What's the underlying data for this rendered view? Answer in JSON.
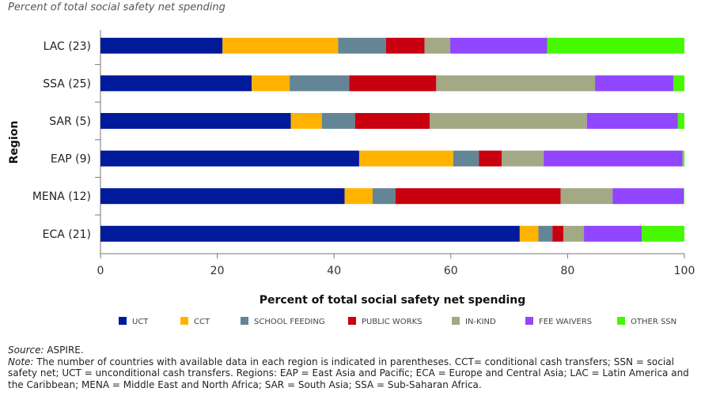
{
  "subtitle": "Percent of total social safety net spending",
  "chart_data": {
    "type": "bar",
    "orientation": "horizontal",
    "stacked": true,
    "categories": [
      "LAC (23)",
      "SSA (25)",
      "SAR (5)",
      "EAP (9)",
      "MENA (12)",
      "ECA (21)"
    ],
    "series": [
      {
        "name": "UCT",
        "color": "#001a99",
        "values": [
          20.9,
          25.9,
          32.6,
          44.3,
          41.8,
          71.8
        ]
      },
      {
        "name": "CCT",
        "color": "#ffb300",
        "values": [
          19.8,
          6.5,
          5.3,
          16.1,
          4.8,
          3.2
        ]
      },
      {
        "name": "SCHOOL FEEDING",
        "color": "#648595",
        "values": [
          8.2,
          10.2,
          5.7,
          4.4,
          3.9,
          2.4
        ]
      },
      {
        "name": "PUBLIC WORKS",
        "color": "#c8000f",
        "values": [
          6.6,
          14.9,
          12.8,
          3.9,
          28.3,
          1.9
        ]
      },
      {
        "name": "IN-KIND",
        "color": "#a3a885",
        "values": [
          4.4,
          27.2,
          26.9,
          7.2,
          8.9,
          3.5
        ]
      },
      {
        "name": "FEE WAIVERS",
        "color": "#9146ff",
        "values": [
          16.6,
          13.4,
          15.6,
          23.8,
          12.2,
          9.9
        ]
      },
      {
        "name": "OTHER SSN",
        "color": "#46f800",
        "values": [
          23.5,
          1.9,
          1.1,
          0.3,
          0.1,
          7.3
        ]
      }
    ],
    "xlabel": "Percent of total social safety net spending",
    "ylabel": "Region",
    "xlim": [
      0,
      100
    ],
    "xticks": [
      "0",
      "20",
      "40",
      "60",
      "80",
      "100"
    ],
    "grid": false,
    "legend": "bottom"
  },
  "notes": {
    "source_label": "Source:",
    "source_text": " ASPIRE.",
    "note_label": "Note:",
    "note_text": " The number of countries with available data in each region is indicated in parentheses. CCT= conditional cash transfers; SSN = social safety net; UCT = unconditional cash transfers. Regions: EAP = East Asia and Pacific; ECA = Europe and Central Asia; LAC = Latin America and the Caribbean; MENA = Middle East and North Africa; SAR = South Asia; SSA = Sub-Saharan Africa."
  }
}
